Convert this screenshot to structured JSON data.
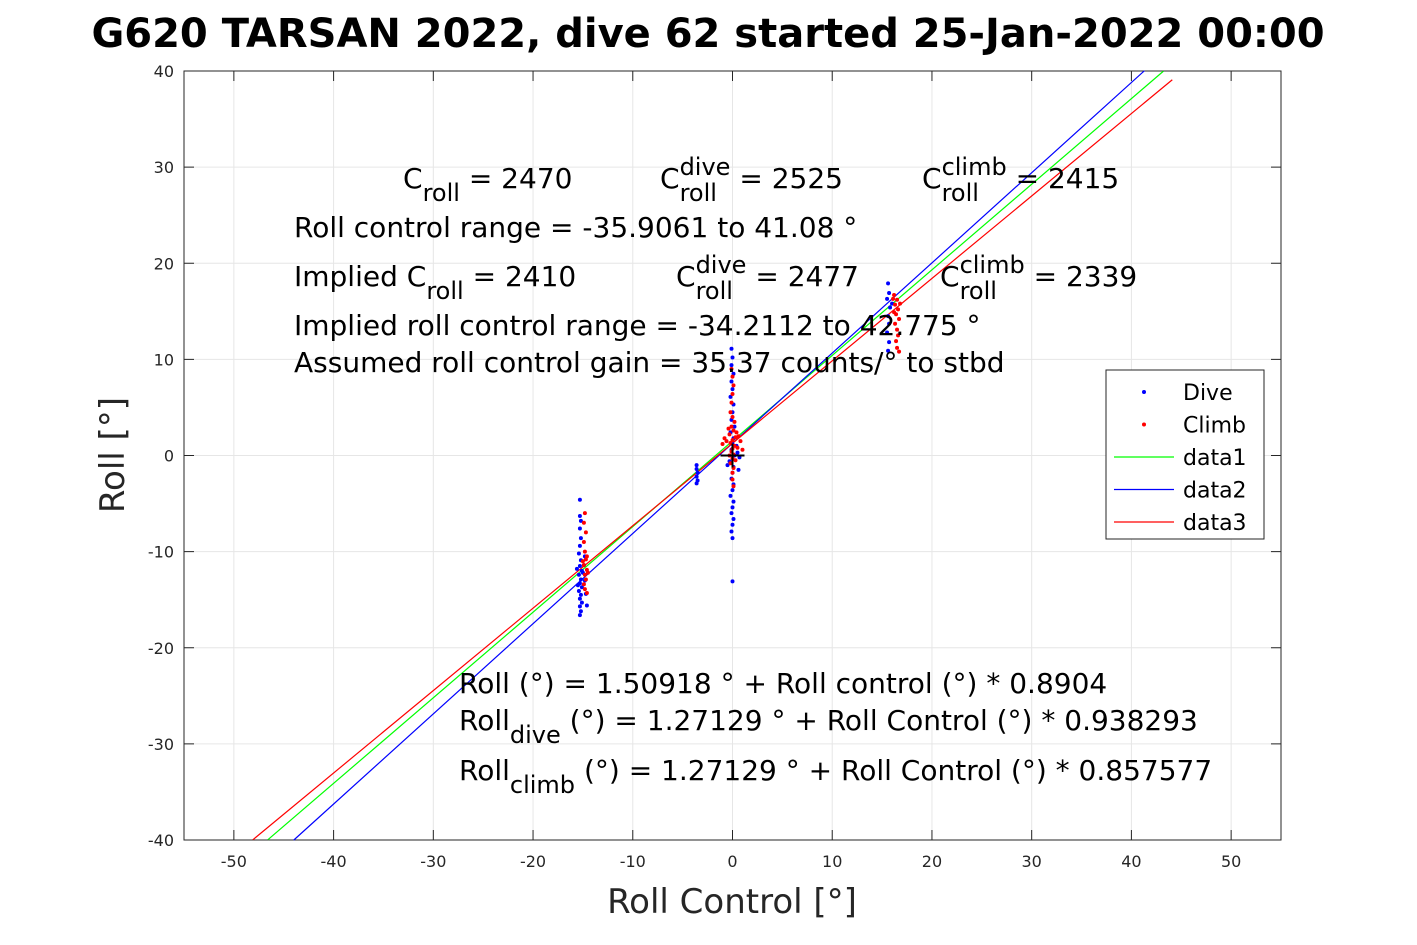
{
  "chart_data": {
    "type": "scatter",
    "title": "G620 TARSAN 2022, dive 62 started 25-Jan-2022 00:00",
    "xlabel": "Roll Control [°]",
    "ylabel": "Roll [°]",
    "xlim": [
      -55,
      55
    ],
    "ylim": [
      -40,
      40
    ],
    "xticks": [
      -50,
      -40,
      -30,
      -20,
      -10,
      0,
      10,
      20,
      30,
      40,
      50
    ],
    "yticks": [
      -40,
      -30,
      -20,
      -10,
      0,
      10,
      20,
      30,
      40
    ],
    "xtick_labels": [
      "-50",
      "-40",
      "-30",
      "-20",
      "-10",
      "0",
      "10",
      "20",
      "30",
      "40",
      "50"
    ],
    "ytick_labels": [
      "-40",
      "-30",
      "-20",
      "-10",
      "0",
      "10",
      "20",
      "30",
      "40"
    ],
    "grid": true,
    "legend_position": "right",
    "series": [
      {
        "name": "Dive",
        "kind": "points",
        "color": "#0000ff",
        "points": [
          [
            -15.3,
            -4.6
          ],
          [
            -15.3,
            -6.3
          ],
          [
            -15.2,
            -6.8
          ],
          [
            -15.3,
            -7.6
          ],
          [
            -15.2,
            -8.6
          ],
          [
            -15.3,
            -9.4
          ],
          [
            -15.4,
            -10.2
          ],
          [
            -15.2,
            -10.9
          ],
          [
            -15.3,
            -11.5
          ],
          [
            -15.1,
            -12.0
          ],
          [
            -15.4,
            -12.4
          ],
          [
            -15.2,
            -12.9
          ],
          [
            -15.3,
            -13.3
          ],
          [
            -15.1,
            -13.7
          ],
          [
            -15.4,
            -14.1
          ],
          [
            -15.2,
            -14.5
          ],
          [
            -15.3,
            -14.9
          ],
          [
            -15.1,
            -15.3
          ],
          [
            -15.3,
            -15.7
          ],
          [
            -15.2,
            -16.2
          ],
          [
            -15.3,
            -16.6
          ],
          [
            -14.8,
            -13.0
          ],
          [
            -14.7,
            -14.4
          ],
          [
            -14.6,
            -15.6
          ],
          [
            -15.0,
            -12.2
          ],
          [
            -14.9,
            -11.4
          ],
          [
            -15.5,
            -13.5
          ],
          [
            -15.6,
            -11.8
          ],
          [
            -14.8,
            -10.5
          ],
          [
            -3.6,
            -1.0
          ],
          [
            -3.6,
            -1.4
          ],
          [
            -3.5,
            -1.8
          ],
          [
            -3.6,
            -2.2
          ],
          [
            -3.5,
            -2.6
          ],
          [
            -3.6,
            -2.9
          ],
          [
            -0.1,
            11.1
          ],
          [
            0.0,
            10.2
          ],
          [
            -0.1,
            9.4
          ],
          [
            0.1,
            8.5
          ],
          [
            -0.1,
            7.7
          ],
          [
            0.0,
            6.9
          ],
          [
            -0.2,
            6.1
          ],
          [
            0.1,
            5.3
          ],
          [
            0.0,
            4.5
          ],
          [
            -0.1,
            3.7
          ],
          [
            0.2,
            3.0
          ],
          [
            -0.2,
            2.4
          ],
          [
            0.1,
            1.8
          ],
          [
            0.0,
            1.2
          ],
          [
            -0.1,
            0.6
          ],
          [
            0.2,
            0.0
          ],
          [
            -0.3,
            -0.6
          ],
          [
            0.1,
            -1.2
          ],
          [
            0.0,
            -1.8
          ],
          [
            -0.1,
            -2.4
          ],
          [
            0.1,
            -3.0
          ],
          [
            0.0,
            -3.6
          ],
          [
            -0.2,
            -4.2
          ],
          [
            0.1,
            -4.8
          ],
          [
            0.0,
            -5.4
          ],
          [
            -0.1,
            -6.0
          ],
          [
            0.1,
            -6.6
          ],
          [
            0.0,
            -7.2
          ],
          [
            -0.1,
            -7.9
          ],
          [
            0.0,
            -8.6
          ],
          [
            0.0,
            -13.1
          ],
          [
            0.5,
            0.3
          ],
          [
            0.7,
            -0.2
          ],
          [
            0.4,
            1.0
          ],
          [
            -0.5,
            -1.0
          ],
          [
            0.6,
            -1.5
          ],
          [
            15.6,
            17.9
          ],
          [
            15.7,
            16.9
          ],
          [
            15.5,
            16.3
          ],
          [
            15.8,
            15.4
          ],
          [
            15.6,
            14.5
          ],
          [
            15.7,
            13.7
          ],
          [
            15.5,
            12.8
          ],
          [
            15.7,
            11.8
          ],
          [
            15.6,
            10.9
          ],
          [
            16.0,
            15.8
          ]
        ]
      },
      {
        "name": "Climb",
        "kind": "points",
        "color": "#ff0000",
        "points": [
          [
            -14.8,
            -6.0
          ],
          [
            -14.9,
            -7.0
          ],
          [
            -14.7,
            -8.0
          ],
          [
            -14.9,
            -9.0
          ],
          [
            -14.8,
            -10.0
          ],
          [
            -14.7,
            -10.8
          ],
          [
            -14.9,
            -11.4
          ],
          [
            -14.6,
            -11.9
          ],
          [
            -14.8,
            -12.4
          ],
          [
            -14.7,
            -12.9
          ],
          [
            -14.9,
            -13.4
          ],
          [
            -14.8,
            -13.9
          ],
          [
            -14.6,
            -14.3
          ],
          [
            -15.0,
            -11.0
          ],
          [
            -14.5,
            -12.2
          ],
          [
            -14.6,
            -10.5
          ],
          [
            -0.2,
            4.5
          ],
          [
            0.0,
            4.0
          ],
          [
            0.2,
            3.5
          ],
          [
            -0.1,
            3.0
          ],
          [
            0.1,
            2.6
          ],
          [
            -0.3,
            2.2
          ],
          [
            0.3,
            1.9
          ],
          [
            0.0,
            1.6
          ],
          [
            -0.2,
            1.3
          ],
          [
            0.2,
            1.0
          ],
          [
            0.0,
            0.7
          ],
          [
            -0.1,
            0.4
          ],
          [
            0.1,
            0.1
          ],
          [
            0.0,
            -0.3
          ],
          [
            -0.2,
            -0.8
          ],
          [
            0.1,
            -1.3
          ],
          [
            0.0,
            -1.8
          ],
          [
            -0.4,
            2.8
          ],
          [
            0.4,
            2.4
          ],
          [
            -0.6,
            1.5
          ],
          [
            0.5,
            0.8
          ],
          [
            -0.3,
            0.0
          ],
          [
            0.3,
            -0.5
          ],
          [
            0.0,
            -2.5
          ],
          [
            0.1,
            -3.2
          ],
          [
            -0.1,
            5.5
          ],
          [
            0.0,
            6.4
          ],
          [
            0.1,
            7.3
          ],
          [
            0.0,
            8.2
          ],
          [
            -0.1,
            9.0
          ],
          [
            0.6,
            2.0
          ],
          [
            0.8,
            1.5
          ],
          [
            -0.8,
            1.8
          ],
          [
            -1.0,
            1.2
          ],
          [
            1.0,
            0.6
          ],
          [
            16.2,
            16.7
          ],
          [
            16.5,
            16.2
          ],
          [
            16.3,
            15.7
          ],
          [
            16.6,
            15.2
          ],
          [
            16.4,
            14.7
          ],
          [
            16.7,
            14.2
          ],
          [
            16.3,
            13.7
          ],
          [
            16.5,
            13.1
          ],
          [
            16.6,
            12.5
          ],
          [
            16.4,
            11.9
          ],
          [
            16.5,
            11.2
          ],
          [
            16.7,
            10.8
          ],
          [
            16.2,
            14.9
          ],
          [
            16.8,
            15.8
          ],
          [
            16.1,
            16.3
          ]
        ]
      },
      {
        "name": "data1",
        "kind": "line",
        "color": "#00ff00",
        "intercept": 1.50918,
        "slope": 0.8904,
        "x_range": [
          -46.6,
          43.2
        ]
      },
      {
        "name": "data2",
        "kind": "line",
        "color": "#0000ff",
        "intercept": 1.27129,
        "slope": 0.938293,
        "x_range": [
          -44.0,
          41.3
        ]
      },
      {
        "name": "data3",
        "kind": "line",
        "color": "#ff0000",
        "intercept": 1.27129,
        "slope": 0.857577,
        "x_range": [
          -48.1,
          44.1
        ]
      }
    ],
    "crosshair": [
      0,
      0
    ],
    "annotations": [
      {
        "id": "c_roll",
        "base": "C",
        "sub": "roll",
        "sup": "",
        "tail": " = 2470"
      },
      {
        "id": "c_roll_dive",
        "base": "C",
        "sub": "roll",
        "sup": "dive",
        "tail": " = 2525"
      },
      {
        "id": "c_roll_climb",
        "base": "C",
        "sub": "roll",
        "sup": "climb",
        "tail": " = 2415"
      },
      {
        "id": "roll_range",
        "text": "Roll control range = -35.9061 to 41.08 °"
      },
      {
        "id": "implied_c_roll",
        "base": "Implied C",
        "sub": "roll",
        "sup": "",
        "tail": " = 2410"
      },
      {
        "id": "implied_c_roll_dive",
        "base": "C",
        "sub": "roll",
        "sup": "dive",
        "tail": " = 2477"
      },
      {
        "id": "implied_c_roll_climb",
        "base": "C",
        "sub": "roll",
        "sup": "climb",
        "tail": " = 2339"
      },
      {
        "id": "implied_range",
        "text": "Implied roll control range = -34.2112 to 42.775 °"
      },
      {
        "id": "gain",
        "text": "Assumed roll control gain = 35.37 counts/° to stbd"
      },
      {
        "id": "fit_all",
        "text": "Roll (°) = 1.50918 ° + Roll control (°) * 0.8904"
      },
      {
        "id": "fit_dive",
        "base": "Roll",
        "sub": "dive",
        "sup": "",
        "tail": " (°) = 1.27129 ° + Roll Control (°) * 0.938293"
      },
      {
        "id": "fit_climb",
        "base": "Roll",
        "sub": "climb",
        "sup": "",
        "tail": " (°) = 1.27129 ° + Roll Control (°) * 0.857577"
      }
    ]
  }
}
